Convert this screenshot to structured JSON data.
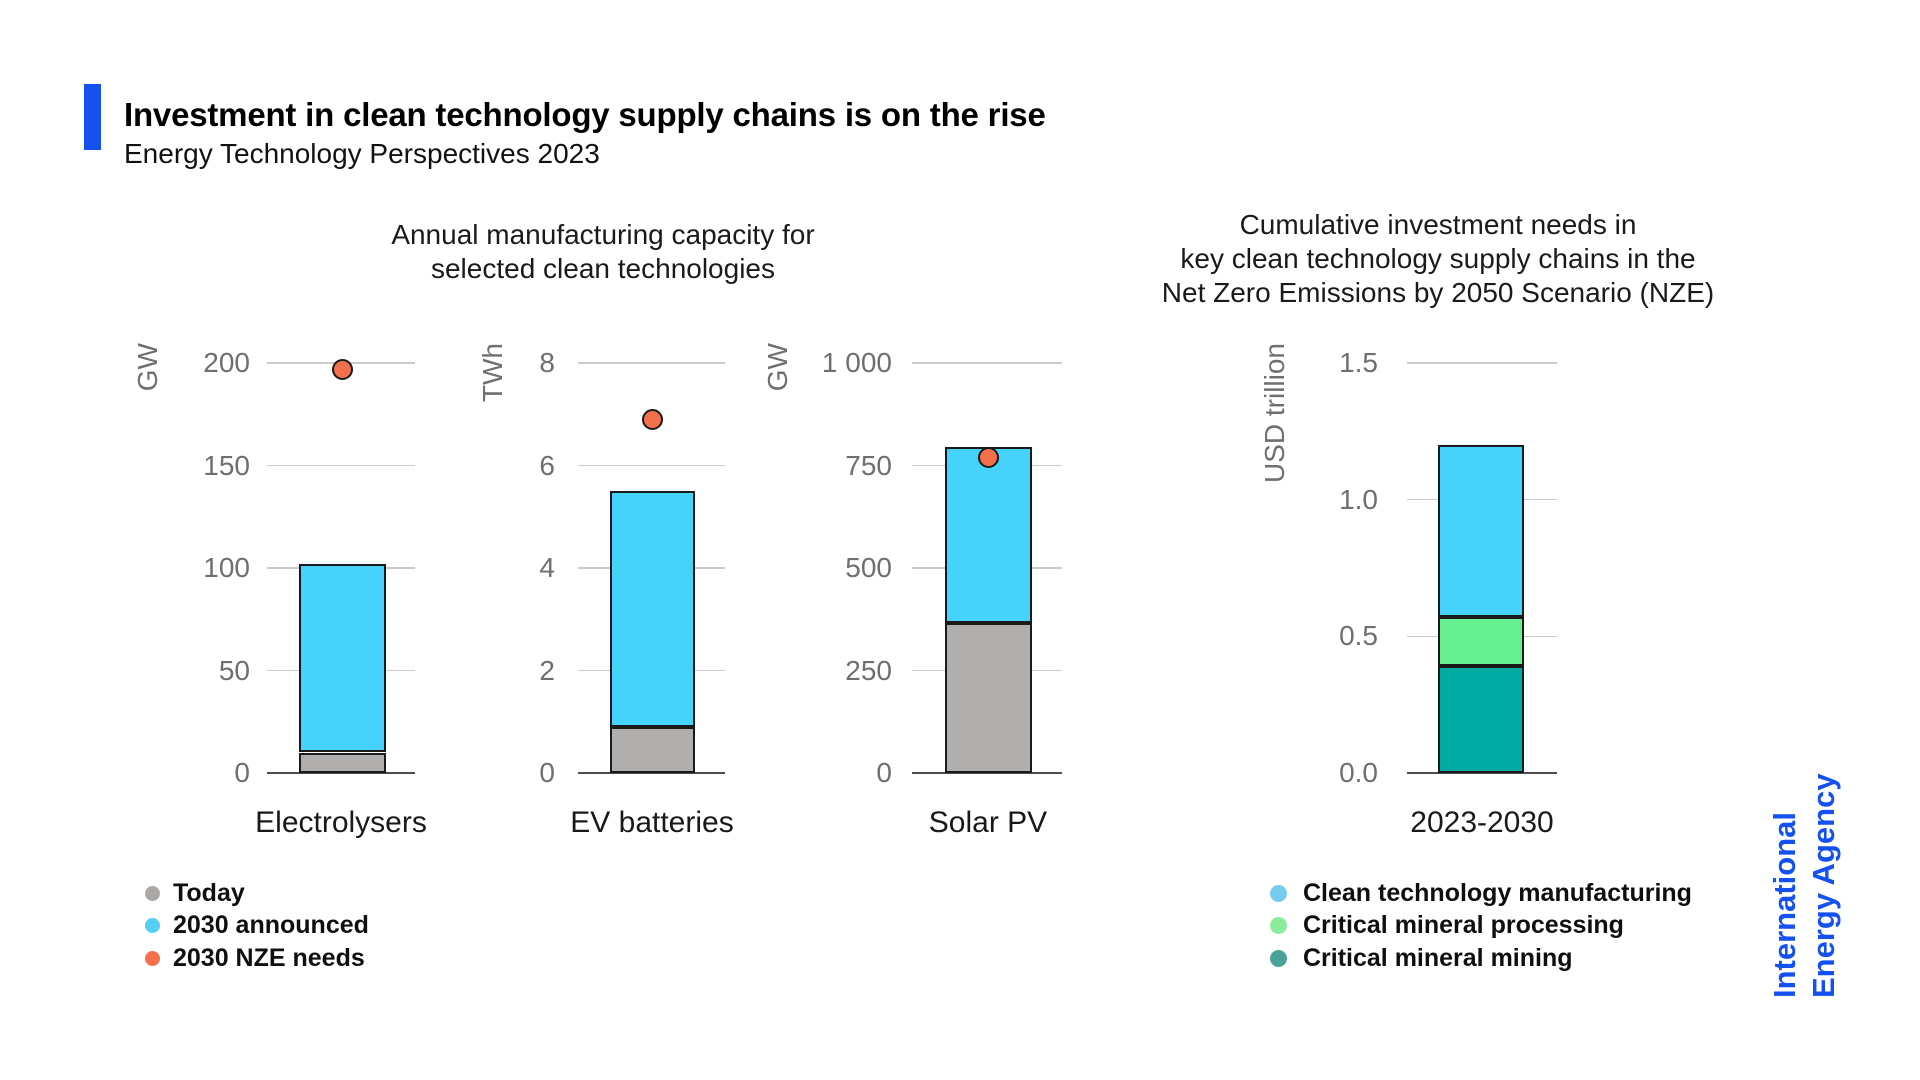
{
  "header": {
    "title": "Investment in clean technology supply chains is on the rise",
    "subtitle": "Energy Technology Perspectives 2023",
    "accent_color": "#1551F0"
  },
  "panels": {
    "left": {
      "title_lines": [
        "Annual manufacturing capacity for",
        "selected clean technologies"
      ],
      "legend": [
        {
          "label": "Today",
          "color": "#ABA7A5"
        },
        {
          "label": "2030 announced",
          "color": "#55CFF6"
        },
        {
          "label": "2030 NZE needs",
          "color": "#F2714C"
        }
      ]
    },
    "right": {
      "title_lines": [
        "Cumulative investment needs in",
        "key clean technology supply chains in the",
        "Net Zero Emissions by 2050 Scenario (NZE)"
      ],
      "legend": [
        {
          "label": "Clean technology manufacturing",
          "color": "#76CCEF"
        },
        {
          "label": "Critical mineral processing",
          "color": "#8BEC9D"
        },
        {
          "label": "Critical mineral mining",
          "color": "#4AA396"
        }
      ]
    }
  },
  "branding": {
    "line1": "International",
    "line2": "Energy Agency",
    "color": "#1551F0"
  },
  "chart_data": [
    {
      "type": "bar",
      "category": "Electrolysers",
      "ylabel": "GW",
      "ylim": [
        0,
        200
      ],
      "yticks": [
        "200",
        "150",
        "100",
        "50",
        "0"
      ],
      "stack": [
        {
          "name": "Today",
          "value": 10,
          "color": "#B1AEAE"
        },
        {
          "name": "2030 announced",
          "value": 92,
          "color": "#45D2FB"
        }
      ],
      "total_announced": 102,
      "nze_needs_2030": 197,
      "nze_color": "#F2714C"
    },
    {
      "type": "bar",
      "category": "EV batteries",
      "ylabel": "TWh",
      "ylim": [
        0,
        8
      ],
      "yticks": [
        "8",
        "6",
        "4",
        "2",
        "0"
      ],
      "stack": [
        {
          "name": "Today",
          "value": 0.9,
          "color": "#B1AEAE"
        },
        {
          "name": "2030 announced",
          "value": 4.6,
          "color": "#45D2FB"
        }
      ],
      "total_announced": 5.5,
      "nze_needs_2030": 6.9,
      "nze_color": "#F2714C"
    },
    {
      "type": "bar",
      "category": "Solar PV",
      "ylabel": "GW",
      "ylim": [
        0,
        1000
      ],
      "yticks": [
        "1 000",
        "750",
        "500",
        "250",
        "0"
      ],
      "stack": [
        {
          "name": "Today",
          "value": 365,
          "color": "#B1AEAE"
        },
        {
          "name": "2030 announced",
          "value": 430,
          "color": "#45D2FB"
        }
      ],
      "total_announced": 795,
      "nze_needs_2030": 770,
      "nze_color": "#F2714C"
    },
    {
      "type": "bar",
      "category": "2023-2030",
      "ylabel": "USD trillion",
      "ylim": [
        0,
        1.5
      ],
      "yticks": [
        "1.5",
        "1.0",
        "0.5",
        "0.0"
      ],
      "stack": [
        {
          "name": "Critical mineral mining",
          "value": 0.39,
          "color": "#00ABA3"
        },
        {
          "name": "Critical mineral processing",
          "value": 0.18,
          "color": "#67F092"
        },
        {
          "name": "Clean technology manufacturing",
          "value": 0.63,
          "color": "#45D2FB"
        }
      ],
      "total": 1.2
    }
  ]
}
